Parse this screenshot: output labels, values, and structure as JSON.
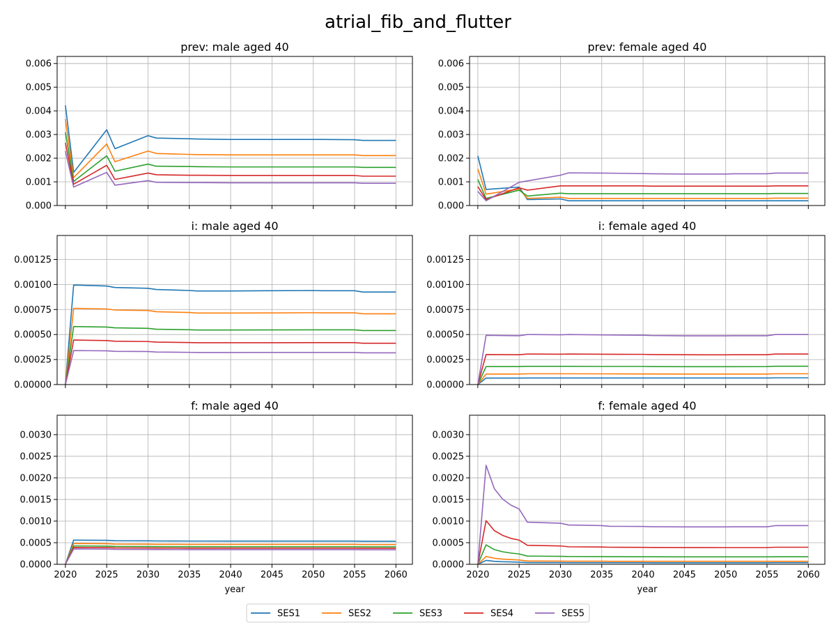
{
  "figure": {
    "title": "atrial_fib_and_flutter",
    "xlabel": "year",
    "legend_placement": "bottom-center",
    "grid": true
  },
  "chart_data": [
    {
      "type": "line",
      "title": "prev: male aged 40",
      "x": [
        2020,
        2021,
        2025,
        2026,
        2030,
        2031,
        2035,
        2036,
        2040,
        2045,
        2050,
        2051,
        2055,
        2056,
        2060
      ],
      "xlim": [
        2019,
        2062
      ],
      "ylim": [
        0,
        0.0063
      ],
      "yticks": [
        0,
        0.001,
        0.002,
        0.003,
        0.004,
        0.005,
        0.006
      ],
      "ytick_labels": [
        "0.000",
        "0.001",
        "0.002",
        "0.003",
        "0.004",
        "0.005",
        "0.006"
      ],
      "show_xticklabels": false,
      "series": [
        {
          "name": "SES1",
          "color": "#1f77b4",
          "values": [
            0.00423,
            0.0014,
            0.0032,
            0.0024,
            0.00295,
            0.00285,
            0.00282,
            0.00281,
            0.00279,
            0.00279,
            0.00279,
            0.00279,
            0.00278,
            0.00275,
            0.00275
          ]
        },
        {
          "name": "SES2",
          "color": "#ff7f0e",
          "values": [
            0.00365,
            0.00118,
            0.0026,
            0.00185,
            0.0023,
            0.0022,
            0.00216,
            0.00215,
            0.00214,
            0.00214,
            0.00214,
            0.00214,
            0.00214,
            0.00211,
            0.00211
          ]
        },
        {
          "name": "SES3",
          "color": "#2ca02c",
          "values": [
            0.0031,
            0.00102,
            0.0021,
            0.00145,
            0.00175,
            0.00166,
            0.00165,
            0.00164,
            0.00163,
            0.00163,
            0.00163,
            0.00163,
            0.00163,
            0.00161,
            0.00161
          ]
        },
        {
          "name": "SES4",
          "color": "#d62728",
          "values": [
            0.00265,
            0.0009,
            0.0017,
            0.0011,
            0.00137,
            0.0013,
            0.00128,
            0.00128,
            0.00127,
            0.00127,
            0.00127,
            0.00127,
            0.00127,
            0.00124,
            0.00124
          ]
        },
        {
          "name": "SES5",
          "color": "#9467bd",
          "values": [
            0.0023,
            0.00078,
            0.0014,
            0.00086,
            0.00105,
            0.00098,
            0.00097,
            0.00097,
            0.00096,
            0.00096,
            0.00096,
            0.00096,
            0.00096,
            0.00094,
            0.00094
          ]
        }
      ]
    },
    {
      "type": "line",
      "title": "prev: female aged 40",
      "x": [
        2020,
        2021,
        2025,
        2026,
        2030,
        2031,
        2035,
        2040,
        2041,
        2045,
        2050,
        2051,
        2055,
        2056,
        2060
      ],
      "xlim": [
        2019,
        2062
      ],
      "ylim": [
        0,
        0.0063
      ],
      "yticks": [
        0,
        0.001,
        0.002,
        0.003,
        0.004,
        0.005,
        0.006
      ],
      "ytick_labels": [
        "0.000",
        "0.001",
        "0.002",
        "0.003",
        "0.004",
        "0.005",
        "0.006"
      ],
      "show_xticklabels": false,
      "series": [
        {
          "name": "SES1",
          "color": "#1f77b4",
          "values": [
            0.0021,
            0.00068,
            0.00078,
            0.00025,
            0.00028,
            0.0002,
            0.0002,
            0.0002,
            0.0002,
            0.0002,
            0.0002,
            0.0002,
            0.0002,
            0.0002,
            0.0002
          ]
        },
        {
          "name": "SES2",
          "color": "#ff7f0e",
          "values": [
            0.00155,
            0.00048,
            0.0007,
            0.0003,
            0.00035,
            0.0003,
            0.0003,
            0.0003,
            0.0003,
            0.0003,
            0.0003,
            0.0003,
            0.0003,
            0.00031,
            0.00031
          ]
        },
        {
          "name": "SES3",
          "color": "#2ca02c",
          "values": [
            0.0011,
            0.0003,
            0.00065,
            0.0004,
            0.00052,
            0.0005,
            0.0005,
            0.0005,
            0.0005,
            0.0005,
            0.0005,
            0.0005,
            0.0005,
            0.00051,
            0.00051
          ]
        },
        {
          "name": "SES4",
          "color": "#d62728",
          "values": [
            0.0008,
            0.00025,
            0.00075,
            0.00065,
            0.00083,
            0.00083,
            0.00083,
            0.00083,
            0.00082,
            0.00082,
            0.00082,
            0.00082,
            0.00082,
            0.00083,
            0.00083
          ]
        },
        {
          "name": "SES5",
          "color": "#9467bd",
          "values": [
            0.0006,
            0.0002,
            0.00098,
            0.00104,
            0.00128,
            0.00138,
            0.00137,
            0.00135,
            0.00134,
            0.00133,
            0.00133,
            0.00134,
            0.00134,
            0.00137,
            0.00137
          ]
        }
      ]
    },
    {
      "type": "line",
      "title": "i: male aged 40",
      "x": [
        2020,
        2021,
        2025,
        2026,
        2030,
        2031,
        2035,
        2036,
        2040,
        2045,
        2050,
        2051,
        2055,
        2056,
        2060
      ],
      "xlim": [
        2019,
        2062
      ],
      "ylim": [
        0,
        0.00149
      ],
      "yticks": [
        0,
        0.00025,
        0.0005,
        0.00075,
        0.001,
        0.00125
      ],
      "ytick_labels": [
        "0.00000",
        "0.00025",
        "0.00050",
        "0.00075",
        "0.00100",
        "0.00125"
      ],
      "show_xticklabels": false,
      "series": [
        {
          "name": "SES1",
          "color": "#1f77b4",
          "values": [
            0,
            0.000995,
            0.000985,
            0.00097,
            0.000962,
            0.00095,
            0.00094,
            0.000935,
            0.000935,
            0.000938,
            0.00094,
            0.000938,
            0.000938,
            0.000925,
            0.000925
          ]
        },
        {
          "name": "SES2",
          "color": "#ff7f0e",
          "values": [
            0,
            0.000762,
            0.000755,
            0.000745,
            0.00074,
            0.000728,
            0.00072,
            0.000715,
            0.000715,
            0.000716,
            0.000718,
            0.000717,
            0.000717,
            0.000707,
            0.000707
          ]
        },
        {
          "name": "SES3",
          "color": "#2ca02c",
          "values": [
            0,
            0.00058,
            0.000575,
            0.000567,
            0.000562,
            0.000553,
            0.000548,
            0.000545,
            0.000545,
            0.000546,
            0.000547,
            0.000547,
            0.000547,
            0.00054,
            0.00054
          ]
        },
        {
          "name": "SES4",
          "color": "#d62728",
          "values": [
            0,
            0.000445,
            0.00044,
            0.000433,
            0.00043,
            0.000424,
            0.00042,
            0.000418,
            0.000418,
            0.000418,
            0.000419,
            0.000419,
            0.000419,
            0.000413,
            0.000413
          ]
        },
        {
          "name": "SES5",
          "color": "#9467bd",
          "values": [
            0,
            0.00034,
            0.000337,
            0.000332,
            0.00033,
            0.000325,
            0.000322,
            0.00032,
            0.00032,
            0.000321,
            0.000321,
            0.000321,
            0.000321,
            0.000317,
            0.000317
          ]
        }
      ]
    },
    {
      "type": "line",
      "title": "i: female aged 40",
      "x": [
        2020,
        2021,
        2025,
        2026,
        2030,
        2031,
        2035,
        2040,
        2041,
        2045,
        2050,
        2051,
        2055,
        2056,
        2060
      ],
      "xlim": [
        2019,
        2062
      ],
      "ylim": [
        0,
        0.00149
      ],
      "yticks": [
        0,
        0.00025,
        0.0005,
        0.00075,
        0.001,
        0.00125
      ],
      "ytick_labels": [
        "0.00000",
        "0.00025",
        "0.00050",
        "0.00075",
        "0.00100",
        "0.00125"
      ],
      "show_xticklabels": false,
      "series": [
        {
          "name": "SES1",
          "color": "#1f77b4",
          "values": [
            0,
            6.5e-05,
            6.5e-05,
            6.6e-05,
            6.6e-05,
            6.6e-05,
            6.6e-05,
            6.6e-05,
            6.6e-05,
            6.6e-05,
            6.6e-05,
            6.6e-05,
            6.6e-05,
            6.7e-05,
            6.7e-05
          ]
        },
        {
          "name": "SES2",
          "color": "#ff7f0e",
          "values": [
            0,
            0.000105,
            0.000105,
            0.000108,
            0.000108,
            0.000108,
            0.000107,
            0.000106,
            0.000106,
            0.000105,
            0.000105,
            0.000105,
            0.000105,
            0.000108,
            0.000108
          ]
        },
        {
          "name": "SES3",
          "color": "#2ca02c",
          "values": [
            0,
            0.00018,
            0.00018,
            0.000182,
            0.000182,
            0.000182,
            0.000181,
            0.000181,
            0.00018,
            0.000179,
            0.000179,
            0.000179,
            0.00018,
            0.000183,
            0.000183
          ]
        },
        {
          "name": "SES4",
          "color": "#d62728",
          "values": [
            0,
            0.0003,
            0.000298,
            0.000305,
            0.000303,
            0.000305,
            0.000303,
            0.000302,
            0.0003,
            0.000298,
            0.000297,
            0.000298,
            0.000298,
            0.000305,
            0.000305
          ]
        },
        {
          "name": "SES5",
          "color": "#9467bd",
          "values": [
            0,
            0.000492,
            0.000488,
            0.0005,
            0.000497,
            0.0005,
            0.000496,
            0.000493,
            0.00049,
            0.000487,
            0.000487,
            0.000488,
            0.000488,
            0.0005,
            0.0005
          ]
        }
      ]
    },
    {
      "type": "line",
      "title": "f: male aged 40",
      "x": [
        2020,
        2021,
        2025,
        2026,
        2030,
        2031,
        2035,
        2040,
        2045,
        2050,
        2055,
        2056,
        2060
      ],
      "xlim": [
        2019,
        2062
      ],
      "ylim": [
        0,
        0.00345
      ],
      "yticks": [
        0,
        0.0005,
        0.001,
        0.0015,
        0.002,
        0.0025,
        0.003
      ],
      "ytick_labels": [
        "0.0000",
        "0.0005",
        "0.0010",
        "0.0015",
        "0.0020",
        "0.0025",
        "0.0030"
      ],
      "show_xticklabels": true,
      "xticks": [
        2020,
        2025,
        2030,
        2035,
        2040,
        2045,
        2050,
        2055,
        2060
      ],
      "xtick_labels": [
        "2020",
        "2025",
        "2030",
        "2035",
        "2040",
        "2045",
        "2050",
        "2055",
        "2060"
      ],
      "series": [
        {
          "name": "SES1",
          "color": "#1f77b4",
          "values": [
            0,
            0.00056,
            0.000555,
            0.000545,
            0.000543,
            0.00054,
            0.000538,
            0.000537,
            0.000537,
            0.000537,
            0.000537,
            0.000533,
            0.000533
          ]
        },
        {
          "name": "SES2",
          "color": "#ff7f0e",
          "values": [
            0,
            0.00048,
            0.000476,
            0.000468,
            0.000466,
            0.000463,
            0.000461,
            0.00046,
            0.00046,
            0.00046,
            0.00046,
            0.000457,
            0.000457
          ]
        },
        {
          "name": "SES3",
          "color": "#2ca02c",
          "values": [
            0,
            0.000425,
            0.000421,
            0.000414,
            0.000412,
            0.00041,
            0.000408,
            0.000407,
            0.000407,
            0.000407,
            0.000407,
            0.000404,
            0.000404
          ]
        },
        {
          "name": "SES4",
          "color": "#d62728",
          "values": [
            0,
            0.00039,
            0.000386,
            0.00038,
            0.000378,
            0.000376,
            0.000374,
            0.000373,
            0.000373,
            0.000373,
            0.000373,
            0.00037,
            0.00037
          ]
        },
        {
          "name": "SES5",
          "color": "#9467bd",
          "values": [
            0,
            0.000355,
            0.000352,
            0.000346,
            0.000344,
            0.000342,
            0.00034,
            0.000339,
            0.000339,
            0.000339,
            0.000339,
            0.000336,
            0.000336
          ]
        }
      ]
    },
    {
      "type": "line",
      "title": "f: female aged 40",
      "x": [
        2020,
        2021,
        2022,
        2023,
        2024,
        2025,
        2026,
        2030,
        2031,
        2035,
        2036,
        2040,
        2041,
        2045,
        2050,
        2051,
        2055,
        2056,
        2060
      ],
      "xlim": [
        2019,
        2062
      ],
      "ylim": [
        0,
        0.00345
      ],
      "yticks": [
        0,
        0.0005,
        0.001,
        0.0015,
        0.002,
        0.0025,
        0.003
      ],
      "ytick_labels": [
        "0.0000",
        "0.0005",
        "0.0010",
        "0.0015",
        "0.0020",
        "0.0025",
        "0.0030"
      ],
      "show_xticklabels": true,
      "xticks": [
        2020,
        2025,
        2030,
        2035,
        2040,
        2045,
        2050,
        2055,
        2060
      ],
      "xtick_labels": [
        "2020",
        "2025",
        "2030",
        "2035",
        "2040",
        "2045",
        "2050",
        "2055",
        "2060"
      ],
      "series": [
        {
          "name": "SES1",
          "color": "#1f77b4",
          "values": [
            0,
            9e-05,
            7e-05,
            6e-05,
            5.5e-05,
            5e-05,
            4e-05,
            4e-05,
            3.8e-05,
            3.8e-05,
            3.7e-05,
            3.7e-05,
            3.6e-05,
            3.6e-05,
            3.6e-05,
            3.6e-05,
            3.6e-05,
            3.7e-05,
            3.7e-05
          ]
        },
        {
          "name": "SES2",
          "color": "#ff7f0e",
          "values": [
            0,
            0.00018,
            0.00014,
            0.00012,
            0.00011,
            0.0001,
            7.5e-05,
            7.4e-05,
            7.2e-05,
            7.1e-05,
            7e-05,
            7e-05,
            6.9e-05,
            6.9e-05,
            6.9e-05,
            6.9e-05,
            6.9e-05,
            7e-05,
            7e-05
          ]
        },
        {
          "name": "SES3",
          "color": "#2ca02c",
          "values": [
            0,
            0.00045,
            0.00034,
            0.00029,
            0.00026,
            0.00024,
            0.00019,
            0.000185,
            0.00018,
            0.000178,
            0.000176,
            0.000175,
            0.000174,
            0.000173,
            0.000173,
            0.000173,
            0.000173,
            0.000175,
            0.000175
          ]
        },
        {
          "name": "SES4",
          "color": "#d62728",
          "values": [
            0,
            0.00101,
            0.00078,
            0.00067,
            0.0006,
            0.00056,
            0.00044,
            0.000425,
            0.000405,
            0.0004,
            0.000395,
            0.000392,
            0.00039,
            0.000388,
            0.000387,
            0.000387,
            0.000387,
            0.000395,
            0.000395
          ]
        },
        {
          "name": "SES5",
          "color": "#9467bd",
          "values": [
            0,
            0.00229,
            0.00175,
            0.00151,
            0.00137,
            0.00128,
            0.000975,
            0.00095,
            0.00091,
            0.000895,
            0.00088,
            0.000875,
            0.00087,
            0.000865,
            0.000865,
            0.000868,
            0.000868,
            0.000895,
            0.000895
          ]
        }
      ]
    }
  ]
}
